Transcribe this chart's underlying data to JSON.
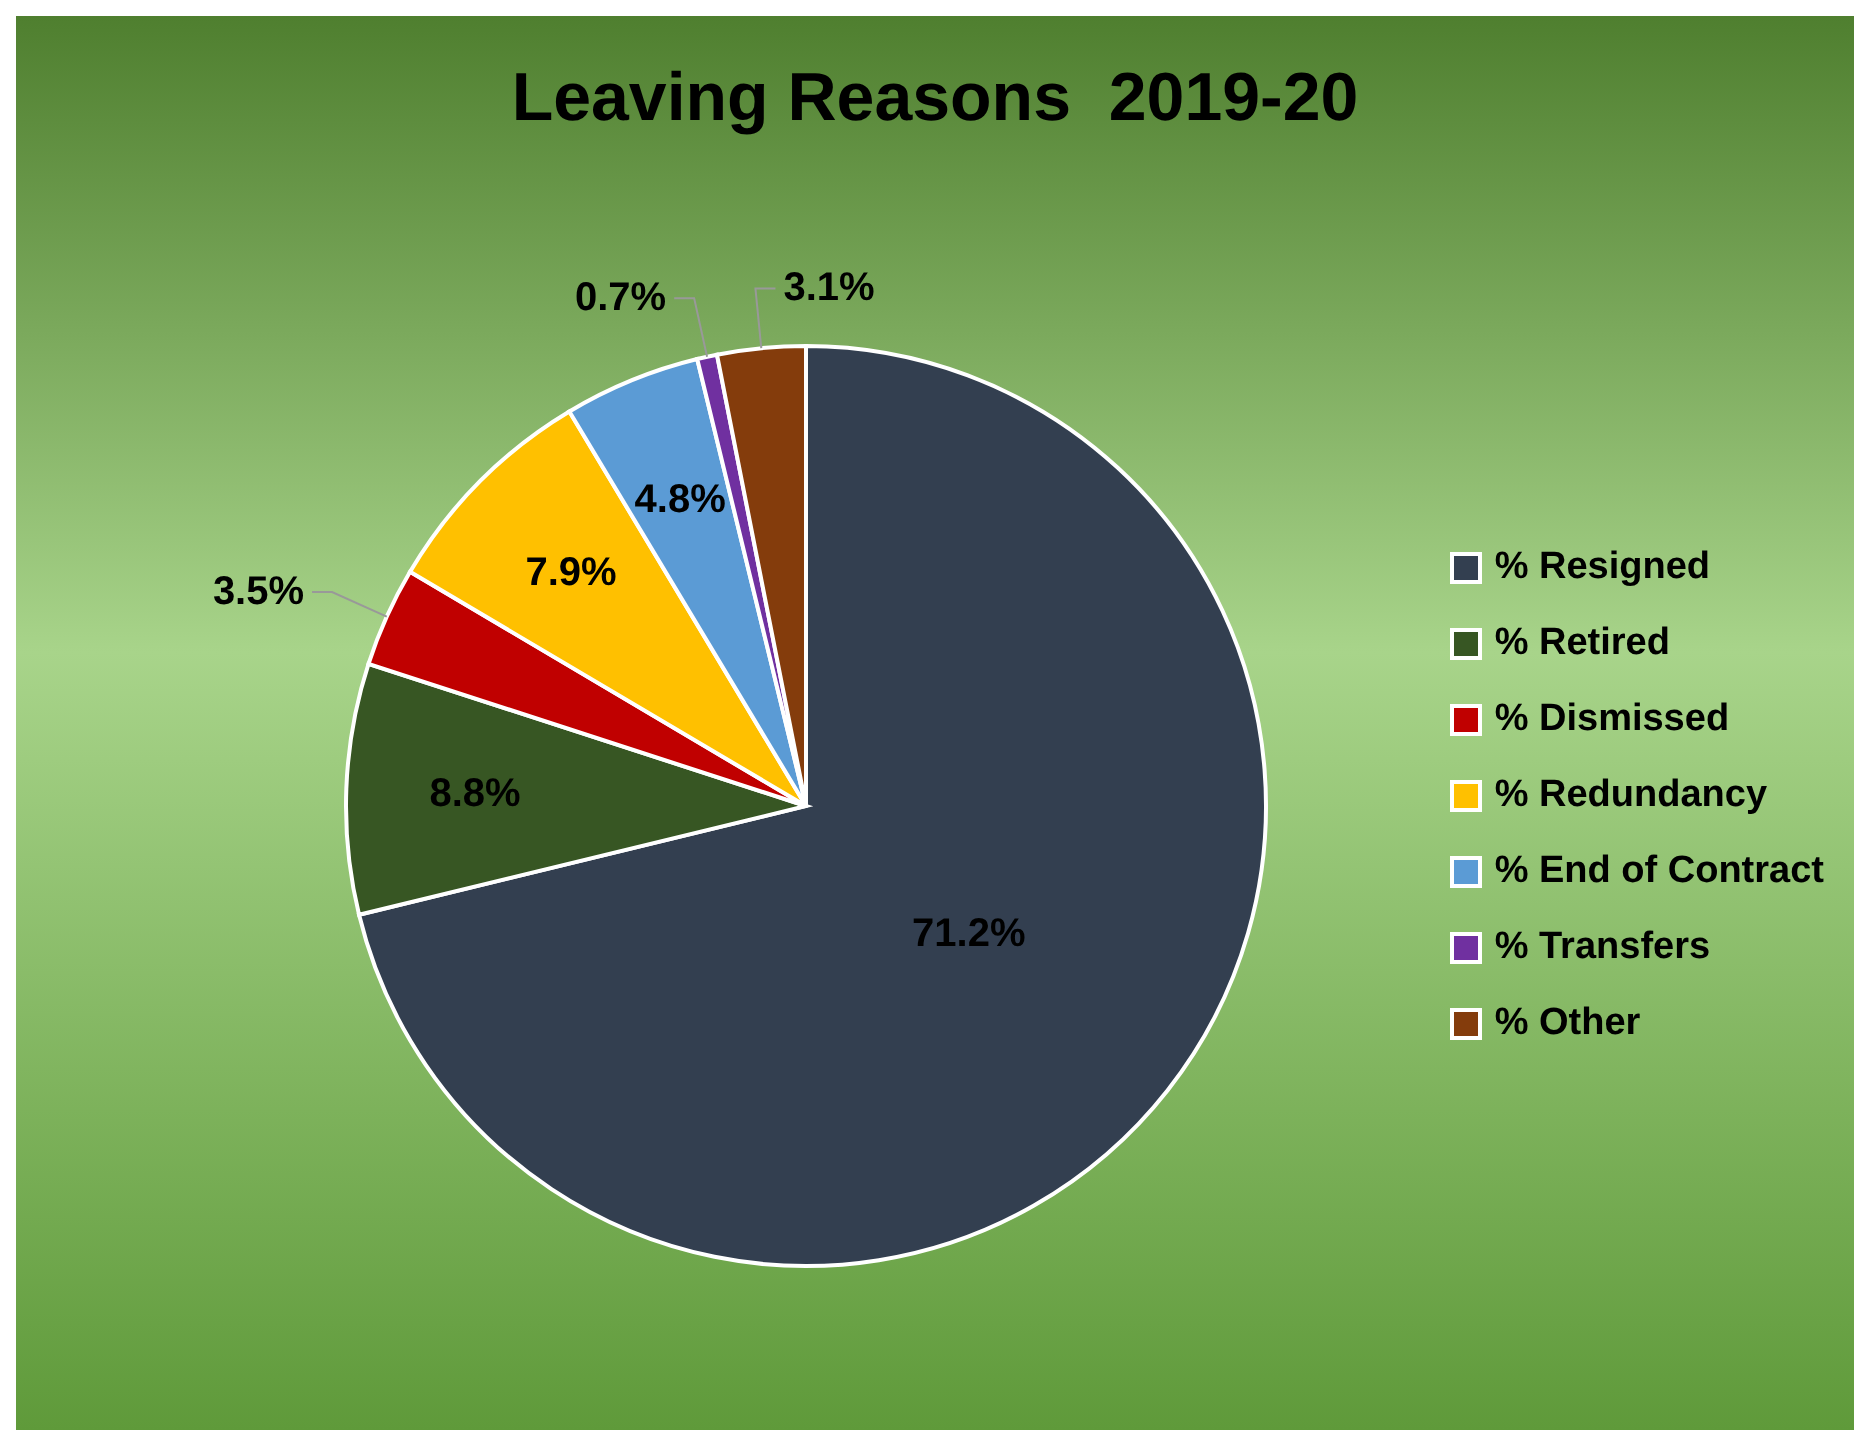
{
  "chart_data": {
    "type": "pie",
    "title": "Leaving Reasons  2019-20",
    "categories": [
      "% Resigned",
      "% Retired",
      "% Dismissed",
      "% Redundancy",
      "% End of Contract",
      "% Transfers",
      "% Other"
    ],
    "values": [
      71.2,
      8.8,
      3.5,
      7.9,
      4.8,
      0.7,
      3.1
    ],
    "value_labels": [
      "71.2%",
      "8.8%",
      "3.5%",
      "7.9%",
      "4.8%",
      "0.7%",
      "3.1%"
    ],
    "colors": [
      "#333f50",
      "#375623",
      "#c00000",
      "#ffc000",
      "#5b9bd5",
      "#7030a0",
      "#843c0c"
    ],
    "legend": "right"
  }
}
